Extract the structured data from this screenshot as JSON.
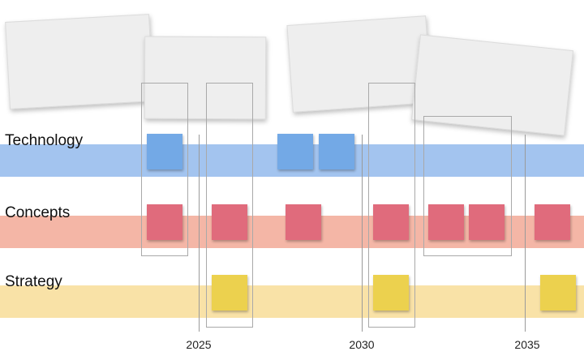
{
  "colors": {
    "technology_band": "#a3c4ef",
    "technology_note": "#73a9e6",
    "concepts_band": "#f4b6a6",
    "concepts_note": "#e06b7c",
    "strategy_band": "#f9e2a7",
    "strategy_note": "#ecd14e"
  },
  "lanes": {
    "technology": {
      "label": "Technology"
    },
    "concepts": {
      "label": "Concepts"
    },
    "strategy": {
      "label": "Strategy"
    }
  },
  "timeline": {
    "years": [
      "2025",
      "2030",
      "2035"
    ]
  }
}
